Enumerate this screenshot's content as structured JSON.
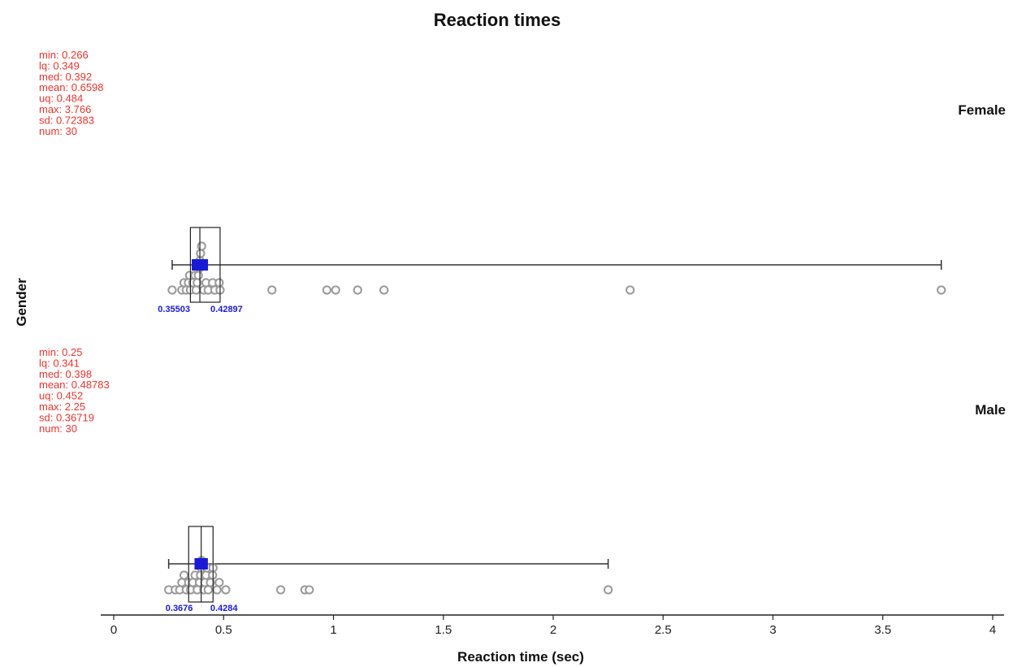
{
  "chart_data": {
    "type": "boxplot",
    "title": "Reaction times",
    "xlabel": "Reaction time (sec)",
    "ylabel": "Gender",
    "xlim": [
      0,
      4
    ],
    "xticks": [
      "0",
      "0.5",
      "1",
      "1.5",
      "2",
      "2.5",
      "3",
      "3.5",
      "4"
    ],
    "colors": {
      "stats": "#e8352e",
      "ci": "#1a1ad6",
      "points": "#9a9a9a",
      "mean_marker": "#1a1ad6"
    },
    "groups": [
      {
        "name": "Female",
        "stats": {
          "min": 0.266,
          "lq": 0.349,
          "med": 0.392,
          "mean": 0.6598,
          "uq": 0.484,
          "max": 3.766,
          "sd": 0.72383,
          "num": 30
        },
        "stat_lines": [
          "min: 0.266",
          "lq: 0.349",
          "med: 0.392",
          "mean: 0.6598",
          "uq: 0.484",
          "max: 3.766",
          "sd: 0.72383",
          "num: 30"
        ],
        "ci": {
          "lower": 0.35503,
          "upper": 0.42897,
          "lower_label": "0.35503",
          "upper_label": "0.42897"
        },
        "points": [
          0.266,
          0.31,
          0.32,
          0.33,
          0.34,
          0.345,
          0.349,
          0.36,
          0.37,
          0.375,
          0.38,
          0.385,
          0.39,
          0.392,
          0.395,
          0.4,
          0.41,
          0.42,
          0.43,
          0.45,
          0.46,
          0.48,
          0.484,
          0.72,
          0.97,
          1.01,
          1.11,
          1.23,
          2.35,
          3.766
        ]
      },
      {
        "name": "Male",
        "stats": {
          "min": 0.25,
          "lq": 0.341,
          "med": 0.398,
          "mean": 0.48783,
          "uq": 0.452,
          "max": 2.25,
          "sd": 0.36719,
          "num": 30
        },
        "stat_lines": [
          "min: 0.25",
          "lq: 0.341",
          "med: 0.398",
          "mean: 0.48783",
          "uq: 0.452",
          "max: 2.25",
          "sd: 0.36719",
          "num: 30"
        ],
        "ci": {
          "lower": 0.3676,
          "upper": 0.4284,
          "lower_label": "0.3676",
          "upper_label": "0.4284"
        },
        "points": [
          0.25,
          0.28,
          0.3,
          0.31,
          0.32,
          0.33,
          0.341,
          0.35,
          0.36,
          0.37,
          0.38,
          0.39,
          0.395,
          0.398,
          0.4,
          0.41,
          0.415,
          0.42,
          0.425,
          0.43,
          0.44,
          0.45,
          0.452,
          0.47,
          0.48,
          0.51,
          0.76,
          0.87,
          0.89,
          2.25
        ]
      }
    ]
  }
}
